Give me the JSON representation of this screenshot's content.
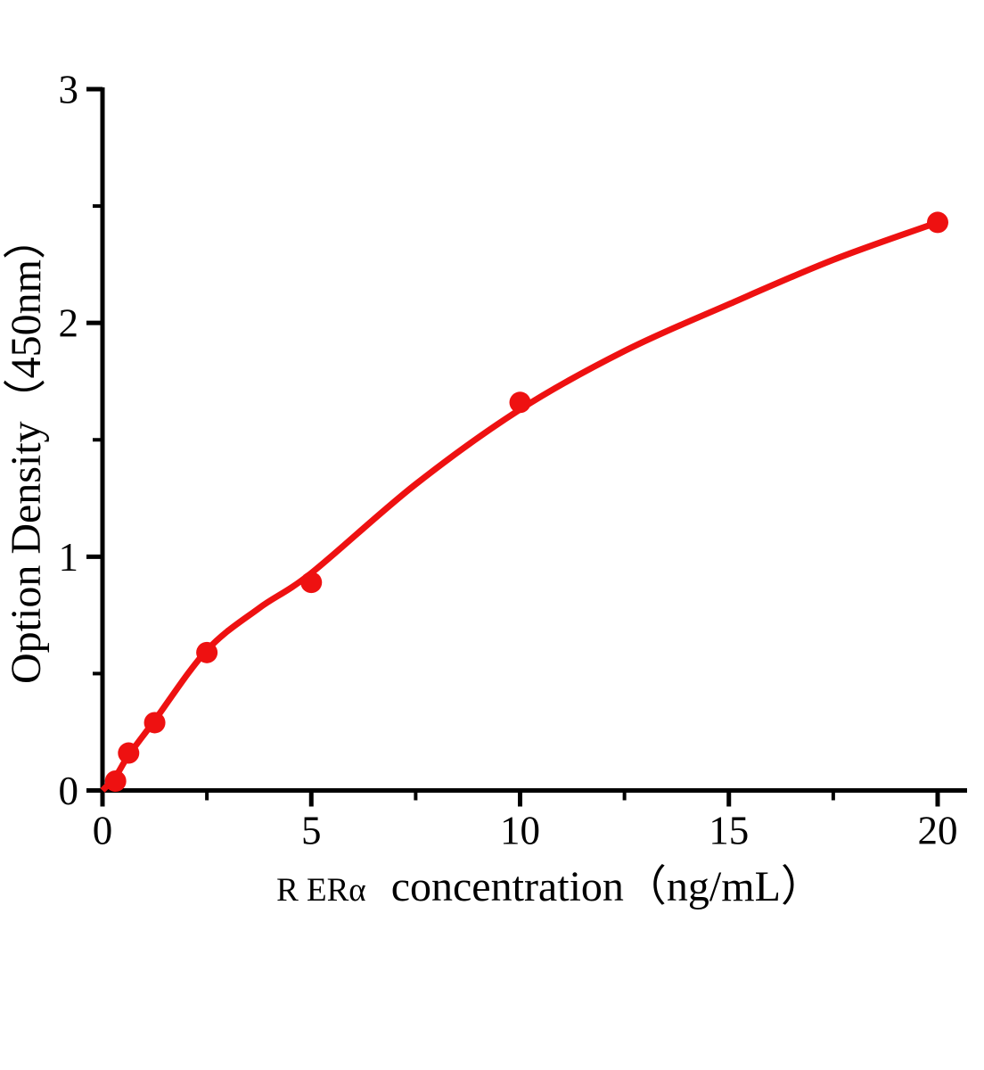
{
  "chart_data": {
    "type": "scatter",
    "title": "",
    "xlabel_prefix": "R ERα",
    "xlabel_main": "concentration（ng/mL）",
    "ylabel": "Option Density（450nm）",
    "xlim": [
      0,
      20.7
    ],
    "ylim": [
      0,
      3
    ],
    "x_major_ticks": [
      0,
      5,
      10,
      15,
      20
    ],
    "x_minor_ticks": [
      2.5,
      7.5,
      12.5,
      17.5
    ],
    "y_major_ticks": [
      0,
      1,
      2,
      3
    ],
    "y_minor_ticks": [
      0.5,
      1.5,
      2.5
    ],
    "grid": false,
    "legend": null,
    "point_color": "#ee1111",
    "curve_color": "#ee1111",
    "axis_color": "#000000",
    "points": [
      {
        "x": 0.313,
        "y": 0.04
      },
      {
        "x": 0.625,
        "y": 0.16
      },
      {
        "x": 1.25,
        "y": 0.29
      },
      {
        "x": 2.5,
        "y": 0.59
      },
      {
        "x": 5,
        "y": 0.89
      },
      {
        "x": 10,
        "y": 1.66
      },
      {
        "x": 20,
        "y": 2.43
      }
    ],
    "fit_curve_samples": [
      [
        0,
        0
      ],
      [
        0.313,
        0.06
      ],
      [
        0.625,
        0.15
      ],
      [
        1.25,
        0.3
      ],
      [
        2.5,
        0.6
      ],
      [
        3.75,
        0.78
      ],
      [
        5,
        0.93
      ],
      [
        7.5,
        1.31
      ],
      [
        10,
        1.63
      ],
      [
        12.5,
        1.88
      ],
      [
        15,
        2.08
      ],
      [
        17.5,
        2.27
      ],
      [
        20,
        2.43
      ]
    ]
  }
}
